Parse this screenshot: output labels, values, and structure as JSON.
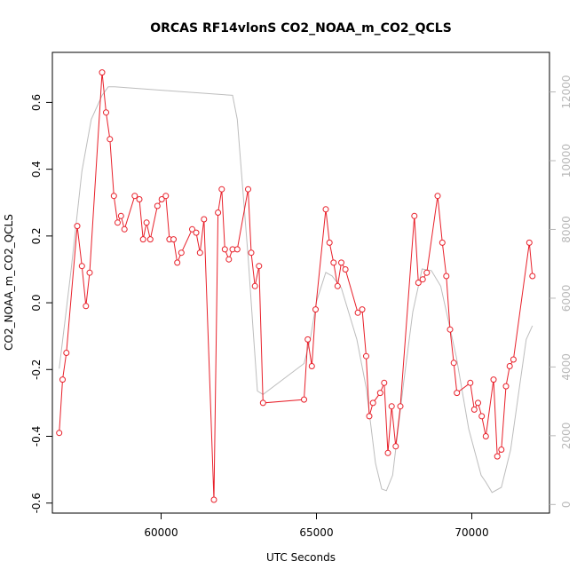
{
  "chart_data": {
    "type": "line",
    "title": "ORCAS RF14vlonS CO2_NOAA_m_CO2_QCLS",
    "xlabel": "UTC Seconds",
    "ylabel": "CO2_NOAA_m_CO2_QCLS",
    "xlim": [
      56500,
      72500
    ],
    "ylim": [
      -0.63,
      0.75
    ],
    "y2lim": [
      -250,
      13150
    ],
    "xticks": [
      60000,
      65000,
      70000
    ],
    "yticks": [
      -0.6,
      -0.4,
      -0.2,
      0.0,
      0.2,
      0.4,
      0.6
    ],
    "y2ticks": [
      0,
      2000,
      4000,
      6000,
      8000,
      10000,
      12000
    ],
    "xtick_labels": [
      "60000",
      "65000",
      "70000"
    ],
    "ytick_labels": [
      "-0.6",
      "-0.4",
      "-0.2",
      "0.0",
      "0.2",
      "0.4",
      "0.6"
    ],
    "y2tick_labels": [
      "0",
      "2000",
      "4000",
      "6000",
      "8000",
      "10000",
      "12000"
    ],
    "colors": {
      "diff": "#e8202a",
      "altitude": "#bdbdbd"
    },
    "series": [
      {
        "key": "diff",
        "axis": "left",
        "markers": true,
        "points": [
          [
            56720,
            -0.39
          ],
          [
            56830,
            -0.23
          ],
          [
            56950,
            -0.15
          ],
          [
            57300,
            0.23
          ],
          [
            57450,
            0.11
          ],
          [
            57580,
            -0.01
          ],
          [
            57700,
            0.09
          ],
          [
            58100,
            0.69
          ],
          [
            58230,
            0.57
          ],
          [
            58350,
            0.49
          ],
          [
            58480,
            0.32
          ],
          [
            58600,
            0.24
          ],
          [
            58710,
            0.26
          ],
          [
            58820,
            0.22
          ],
          [
            59150,
            0.32
          ],
          [
            59300,
            0.31
          ],
          [
            59420,
            0.19
          ],
          [
            59530,
            0.24
          ],
          [
            59650,
            0.19
          ],
          [
            59880,
            0.29
          ],
          [
            60020,
            0.31
          ],
          [
            60150,
            0.32
          ],
          [
            60270,
            0.19
          ],
          [
            60400,
            0.19
          ],
          [
            60520,
            0.12
          ],
          [
            60650,
            0.15
          ],
          [
            61000,
            0.22
          ],
          [
            61130,
            0.21
          ],
          [
            61250,
            0.15
          ],
          [
            61380,
            0.25
          ],
          [
            61700,
            -0.59
          ],
          [
            61830,
            0.27
          ],
          [
            61950,
            0.34
          ],
          [
            62050,
            0.16
          ],
          [
            62180,
            0.13
          ],
          [
            62300,
            0.16
          ],
          [
            62450,
            0.16
          ],
          [
            62800,
            0.34
          ],
          [
            62900,
            0.15
          ],
          [
            63020,
            0.05
          ],
          [
            63150,
            0.11
          ],
          [
            63280,
            -0.3
          ],
          [
            64600,
            -0.29
          ],
          [
            64720,
            -0.11
          ],
          [
            64850,
            -0.19
          ],
          [
            64970,
            -0.02
          ],
          [
            65300,
            0.28
          ],
          [
            65420,
            0.18
          ],
          [
            65550,
            0.12
          ],
          [
            65680,
            0.05
          ],
          [
            65800,
            0.12
          ],
          [
            65930,
            0.1
          ],
          [
            66330,
            -0.03
          ],
          [
            66470,
            -0.02
          ],
          [
            66600,
            -0.16
          ],
          [
            66700,
            -0.34
          ],
          [
            66820,
            -0.3
          ],
          [
            67050,
            -0.27
          ],
          [
            67180,
            -0.24
          ],
          [
            67300,
            -0.45
          ],
          [
            67420,
            -0.31
          ],
          [
            67550,
            -0.43
          ],
          [
            67700,
            -0.31
          ],
          [
            68150,
            0.26
          ],
          [
            68280,
            0.06
          ],
          [
            68420,
            0.07
          ],
          [
            68550,
            0.09
          ],
          [
            68900,
            0.32
          ],
          [
            69050,
            0.18
          ],
          [
            69180,
            0.08
          ],
          [
            69300,
            -0.08
          ],
          [
            69420,
            -0.18
          ],
          [
            69520,
            -0.27
          ],
          [
            69950,
            -0.24
          ],
          [
            70080,
            -0.32
          ],
          [
            70200,
            -0.3
          ],
          [
            70320,
            -0.34
          ],
          [
            70450,
            -0.4
          ],
          [
            70700,
            -0.23
          ],
          [
            70820,
            -0.46
          ],
          [
            70950,
            -0.44
          ],
          [
            71100,
            -0.25
          ],
          [
            71220,
            -0.19
          ],
          [
            71340,
            -0.17
          ],
          [
            71850,
            0.18
          ],
          [
            71950,
            0.08
          ]
        ]
      },
      {
        "key": "altitude",
        "axis": "right",
        "markers": false,
        "points": [
          [
            56720,
            3950
          ],
          [
            57100,
            6800
          ],
          [
            57450,
            9700
          ],
          [
            57750,
            11200
          ],
          [
            58100,
            11900
          ],
          [
            58300,
            12150
          ],
          [
            58500,
            12150
          ],
          [
            60000,
            12050
          ],
          [
            62300,
            11900
          ],
          [
            62450,
            11200
          ],
          [
            62600,
            9500
          ],
          [
            62800,
            7200
          ],
          [
            62950,
            5200
          ],
          [
            63100,
            3300
          ],
          [
            63280,
            3200
          ],
          [
            64600,
            4100
          ],
          [
            64800,
            4800
          ],
          [
            65000,
            5900
          ],
          [
            65300,
            6750
          ],
          [
            65500,
            6650
          ],
          [
            65800,
            6300
          ],
          [
            66300,
            4800
          ],
          [
            66600,
            3400
          ],
          [
            66900,
            1200
          ],
          [
            67100,
            450
          ],
          [
            67250,
            400
          ],
          [
            67450,
            850
          ],
          [
            67800,
            3500
          ],
          [
            68100,
            5600
          ],
          [
            68400,
            6850
          ],
          [
            68700,
            6800
          ],
          [
            69000,
            6350
          ],
          [
            69500,
            4300
          ],
          [
            69900,
            2200
          ],
          [
            70300,
            850
          ],
          [
            70450,
            650
          ],
          [
            70650,
            350
          ],
          [
            70950,
            500
          ],
          [
            71250,
            1600
          ],
          [
            71500,
            3200
          ],
          [
            71750,
            4800
          ],
          [
            71950,
            5200
          ]
        ]
      }
    ]
  }
}
